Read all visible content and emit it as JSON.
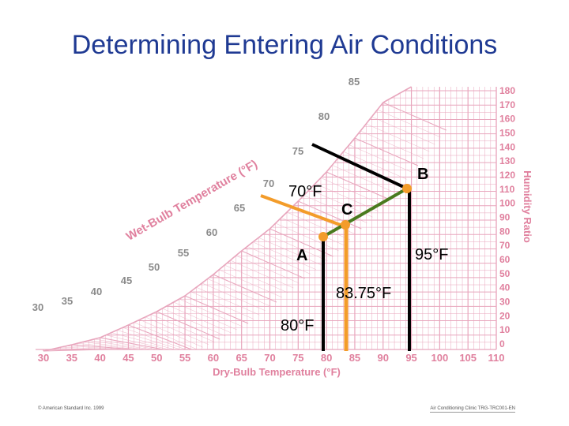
{
  "title": "Determining Entering Air Conditions",
  "footer": {
    "left": "© American Standard Inc. 1999",
    "right": "Air Conditioning Clinic TRG-TRC001-EN"
  },
  "chart": {
    "x_axis_label": "Dry-Bulb Temperature (°F)",
    "x_ticks": [
      "30",
      "35",
      "40",
      "45",
      "50",
      "55",
      "60",
      "65",
      "70",
      "75",
      "80",
      "85",
      "90",
      "95",
      "100",
      "105",
      "110"
    ],
    "y_axis_label": "Humidity Ratio",
    "y_ticks": [
      "180",
      "170",
      "160",
      "150",
      "140",
      "130",
      "120",
      "110",
      "100",
      "90",
      "80",
      "70",
      "60",
      "50",
      "40",
      "30",
      "20",
      "10",
      "0"
    ],
    "wb_axis_label": "Wet-Bulb Temperature (°F)",
    "wb_ticks": [
      "30",
      "35",
      "40",
      "45",
      "50",
      "55",
      "60",
      "65",
      "70",
      "75",
      "80",
      "85"
    ]
  },
  "points": {
    "a": "A",
    "b": "B",
    "c": "C"
  },
  "annotations": {
    "t70": "70°F",
    "t95": "95°F",
    "t8375": "83.75°F",
    "t80": "80°F"
  },
  "colors": {
    "title": "#1f3a93",
    "grid": "#e8a6bd",
    "orange": "#f39c2a",
    "green": "#4a7a1e",
    "black": "#000000"
  }
}
